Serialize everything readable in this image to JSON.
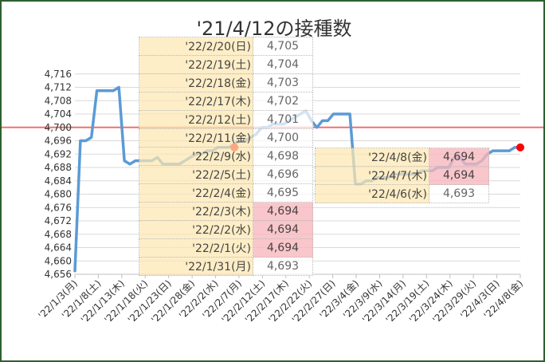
{
  "chart_data": {
    "type": "line",
    "title": "'21/4/12の接種数",
    "ylim": [
      4656,
      4720
    ],
    "yticks": [
      4656,
      4660,
      4664,
      4668,
      4672,
      4676,
      4680,
      4684,
      4688,
      4692,
      4696,
      4700,
      4704,
      4708,
      4712,
      4716
    ],
    "x_tick_labels": [
      "'22/1/3(月)",
      "'22/1/8(土)",
      "'22/1/13(木)",
      "'22/1/18(火)",
      "'22/1/23(日)",
      "'22/1/28(金)",
      "'22/2/2(水)",
      "'22/2/7(月)",
      "'22/2/12(土)",
      "'22/2/17(木)",
      "'22/2/22(火)",
      "'22/2/27(日)",
      "'22/3/4(金)",
      "'22/3/9(水)",
      "'22/3/14(月)",
      "'22/3/19(土)",
      "'22/3/24(木)",
      "'22/3/29(火)",
      "'22/4/3(日)",
      "'22/4/8(金)"
    ],
    "x_start": "'22/1/3(月)",
    "reference_line": {
      "value": 4700,
      "color": "#f07070"
    },
    "line_color": "#5b9bd5",
    "marker_color": "#ff0000",
    "grid": true,
    "series": [
      {
        "values": [
          4657,
          4696,
          4696,
          4697,
          4711,
          4711,
          4711,
          4711,
          4712,
          4690,
          4689,
          4690,
          4690,
          4690,
          4690,
          4691,
          4689,
          4689,
          4689,
          4689,
          4690,
          4691,
          4692,
          4692,
          4693,
          4693,
          4694,
          4694,
          4694,
          4695,
          4696,
          4696,
          4697,
          4698,
          4700,
          4700,
          4701,
          4701,
          4701,
          4702,
          4703,
          4704,
          4705,
          4702,
          4700,
          4702,
          4702,
          4704,
          4704,
          4704,
          4704,
          4683,
          4683,
          4684,
          4684,
          4685,
          4685,
          4685,
          4686,
          4686,
          4686,
          4686,
          4686,
          4687,
          4687,
          4687,
          4688,
          4688,
          4688,
          4691,
          4691,
          4689,
          4689,
          4689,
          4690,
          4692,
          4693,
          4693,
          4693,
          4693,
          4694,
          4694
        ],
        "highlight_points": [
          {
            "date": "'22/2/1(火)",
            "value": 4694
          },
          {
            "date": "'22/4/8(金)",
            "value": 4694
          }
        ]
      }
    ]
  },
  "callout_tables": [
    {
      "rows": [
        {
          "date": "'22/2/20(日)",
          "value": "4,705",
          "highlight": false
        },
        {
          "date": "'22/2/19(土)",
          "value": "4,704",
          "highlight": false
        },
        {
          "date": "'22/2/18(金)",
          "value": "4,703",
          "highlight": false
        },
        {
          "date": "'22/2/17(木)",
          "value": "4,702",
          "highlight": false
        },
        {
          "date": "'22/2/12(土)",
          "value": "4,701",
          "highlight": false
        },
        {
          "date": "'22/2/11(金)",
          "value": "4,700",
          "highlight": false
        },
        {
          "date": "'22/2/9(水)",
          "value": "4,698",
          "highlight": false
        },
        {
          "date": "'22/2/5(土)",
          "value": "4,696",
          "highlight": false
        },
        {
          "date": "'22/2/4(金)",
          "value": "4,695",
          "highlight": false
        },
        {
          "date": "'22/2/3(木)",
          "value": "4,694",
          "highlight": true
        },
        {
          "date": "'22/2/2(水)",
          "value": "4,694",
          "highlight": true
        },
        {
          "date": "'22/2/1(火)",
          "value": "4,694",
          "highlight": true
        },
        {
          "date": "'22/1/31(月)",
          "value": "4,693",
          "highlight": false
        }
      ]
    },
    {
      "rows": [
        {
          "date": "'22/4/8(金)",
          "value": "4,694",
          "highlight": true
        },
        {
          "date": "'22/4/7(木)",
          "value": "4,694",
          "highlight": true
        },
        {
          "date": "'22/4/6(水)",
          "value": "4,693",
          "highlight": false
        }
      ]
    }
  ]
}
